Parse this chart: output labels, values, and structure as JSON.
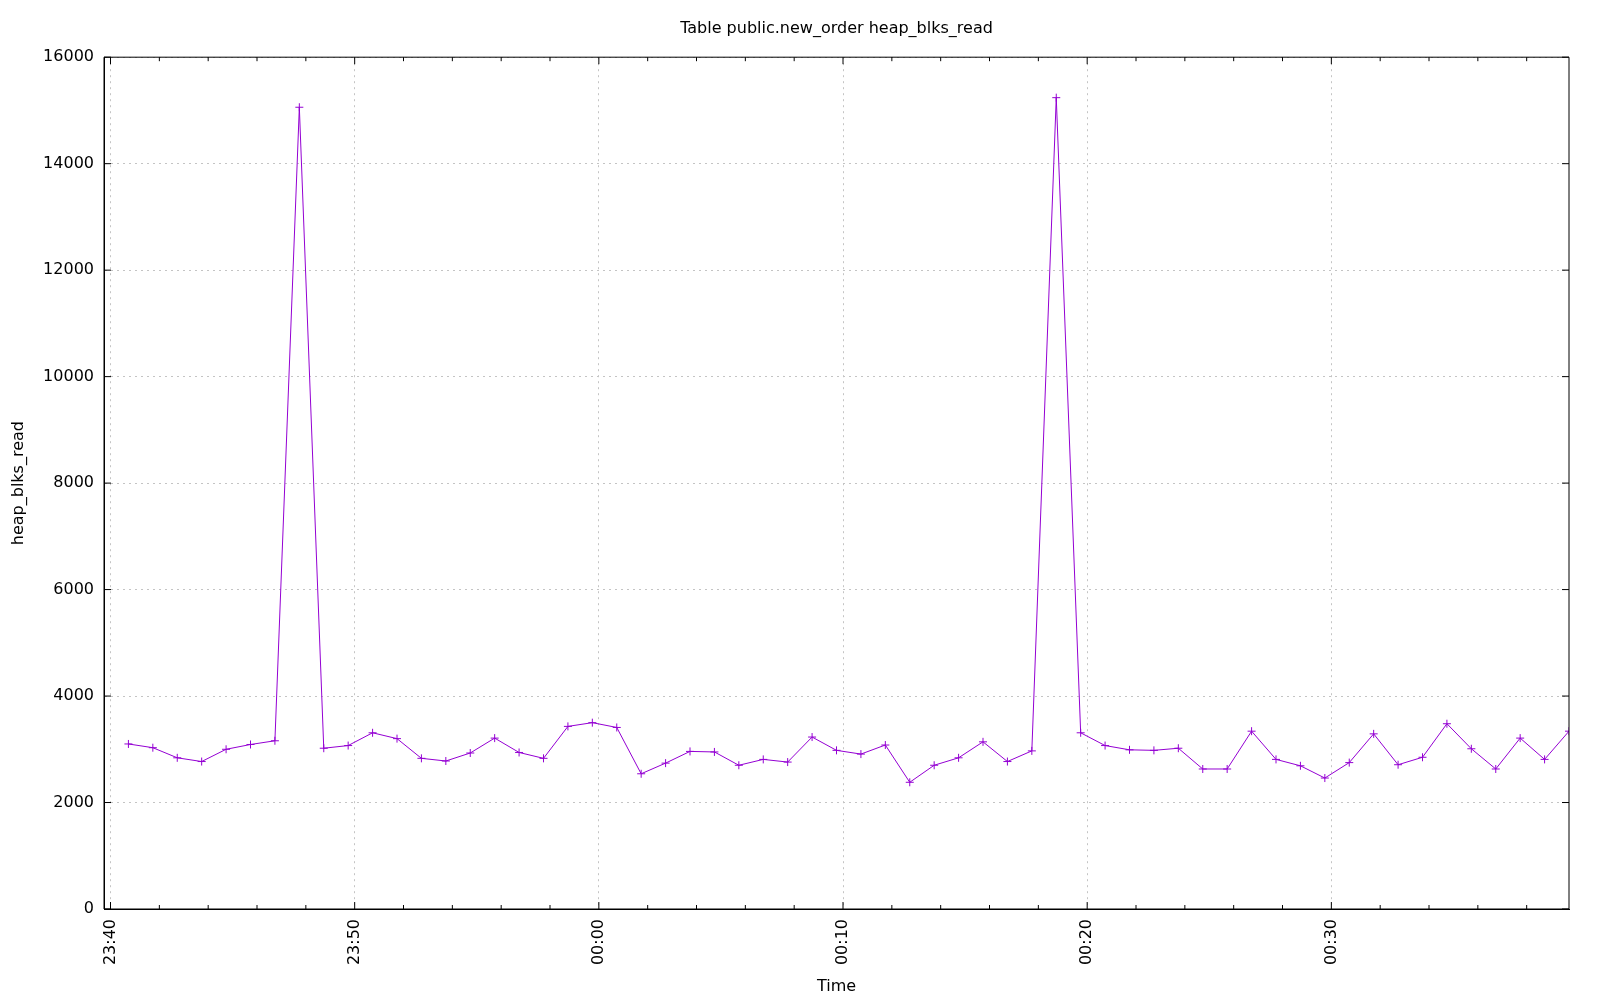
{
  "chart_data": {
    "type": "line",
    "title": "Table public.new_order heap_blks_read",
    "xlabel": "Time",
    "ylabel": "heap_blks_read",
    "x": [
      "2000-01-01T23:40:44",
      "2000-01-01T23:41:44",
      "2000-01-01T23:42:44",
      "2000-01-01T23:43:44",
      "2000-01-01T23:44:44",
      "2000-01-01T23:45:44",
      "2000-01-01T23:46:44",
      "2000-01-01T23:47:44",
      "2000-01-01T23:48:44",
      "2000-01-01T23:49:44",
      "2000-01-01T23:50:44",
      "2000-01-01T23:51:44",
      "2000-01-01T23:52:44",
      "2000-01-01T23:53:44",
      "2000-01-01T23:54:44",
      "2000-01-01T23:55:44",
      "2000-01-01T23:56:44",
      "2000-01-01T23:57:44",
      "2000-01-01T23:58:44",
      "2000-01-01T23:59:44",
      "2000-01-02T00:00:44",
      "2000-01-02T00:01:44",
      "2000-01-02T00:02:44",
      "2000-01-02T00:03:44",
      "2000-01-02T00:04:44",
      "2000-01-02T00:05:44",
      "2000-01-02T00:06:44",
      "2000-01-02T00:07:44",
      "2000-01-02T00:08:44",
      "2000-01-02T00:09:44",
      "2000-01-02T00:10:44",
      "2000-01-02T00:11:44",
      "2000-01-02T00:12:44",
      "2000-01-02T00:13:44",
      "2000-01-02T00:14:44",
      "2000-01-02T00:15:44",
      "2000-01-02T00:16:44",
      "2000-01-02T00:17:44",
      "2000-01-02T00:18:44",
      "2000-01-02T00:19:44",
      "2000-01-02T00:20:44",
      "2000-01-02T00:21:44",
      "2000-01-02T00:22:44",
      "2000-01-02T00:23:44",
      "2000-01-02T00:24:44",
      "2000-01-02T00:25:44",
      "2000-01-02T00:26:44",
      "2000-01-02T00:27:44",
      "2000-01-02T00:28:44",
      "2000-01-02T00:29:44",
      "2000-01-02T00:30:44",
      "2000-01-02T00:31:44",
      "2000-01-02T00:32:44",
      "2000-01-02T00:33:44",
      "2000-01-02T00:34:44",
      "2000-01-02T00:35:44",
      "2000-01-02T00:36:44",
      "2000-01-02T00:37:44",
      "2000-01-02T00:38:44",
      "2000-01-02T00:39:44"
    ],
    "values": [
      3100,
      3030,
      2840,
      2770,
      3000,
      3090,
      3160,
      15060,
      3020,
      3070,
      3310,
      3200,
      2830,
      2780,
      2930,
      3210,
      2940,
      2830,
      3430,
      3500,
      3410,
      2540,
      2740,
      2960,
      2950,
      2700,
      2810,
      2760,
      3230,
      2980,
      2910,
      3080,
      2380,
      2700,
      2840,
      3140,
      2770,
      2970,
      15240,
      3310,
      3070,
      2990,
      2980,
      3020,
      2630,
      2630,
      3340,
      2810,
      2690,
      2460,
      2750,
      3290,
      2710,
      2850,
      3480,
      3010,
      2630,
      3210,
      2810,
      3340
    ],
    "color": "#9400d3",
    "marker": "cross",
    "line_style": "solid",
    "grid": true,
    "xlim": [
      "2000-01-01T23:39:44",
      "2000-01-02T00:39:44"
    ],
    "xticks": [
      {
        "value": "2000-01-01T23:40",
        "label": "23:40"
      },
      {
        "value": "2000-01-01T23:42",
        "label": null
      },
      {
        "value": "2000-01-01T23:44",
        "label": null
      },
      {
        "value": "2000-01-01T23:46",
        "label": null
      },
      {
        "value": "2000-01-01T23:48",
        "label": null
      },
      {
        "value": "2000-01-01T23:50",
        "label": "23:50"
      },
      {
        "value": "2000-01-01T23:52",
        "label": null
      },
      {
        "value": "2000-01-01T23:54",
        "label": null
      },
      {
        "value": "2000-01-01T23:56",
        "label": null
      },
      {
        "value": "2000-01-01T23:58",
        "label": null
      },
      {
        "value": "2000-01-02T00:00",
        "label": "00:00"
      },
      {
        "value": "2000-01-02T00:02",
        "label": null
      },
      {
        "value": "2000-01-02T00:04",
        "label": null
      },
      {
        "value": "2000-01-02T00:06",
        "label": null
      },
      {
        "value": "2000-01-02T00:08",
        "label": null
      },
      {
        "value": "2000-01-02T00:10",
        "label": "00:10"
      },
      {
        "value": "2000-01-02T00:12",
        "label": null
      },
      {
        "value": "2000-01-02T00:14",
        "label": null
      },
      {
        "value": "2000-01-02T00:16",
        "label": null
      },
      {
        "value": "2000-01-02T00:18",
        "label": null
      },
      {
        "value": "2000-01-02T00:20",
        "label": "00:20"
      },
      {
        "value": "2000-01-02T00:22",
        "label": null
      },
      {
        "value": "2000-01-02T00:24",
        "label": null
      },
      {
        "value": "2000-01-02T00:26",
        "label": null
      },
      {
        "value": "2000-01-02T00:28",
        "label": null
      },
      {
        "value": "2000-01-02T00:30",
        "label": "00:30"
      },
      {
        "value": "2000-01-02T00:32",
        "label": null
      },
      {
        "value": "2000-01-02T00:34",
        "label": null
      },
      {
        "value": "2000-01-02T00:36",
        "label": null
      },
      {
        "value": "2000-01-02T00:38",
        "label": null
      }
    ],
    "ylim": [
      0,
      16000
    ],
    "yticks": [
      0,
      2000,
      4000,
      6000,
      8000,
      10000,
      12000,
      14000,
      16000
    ]
  }
}
